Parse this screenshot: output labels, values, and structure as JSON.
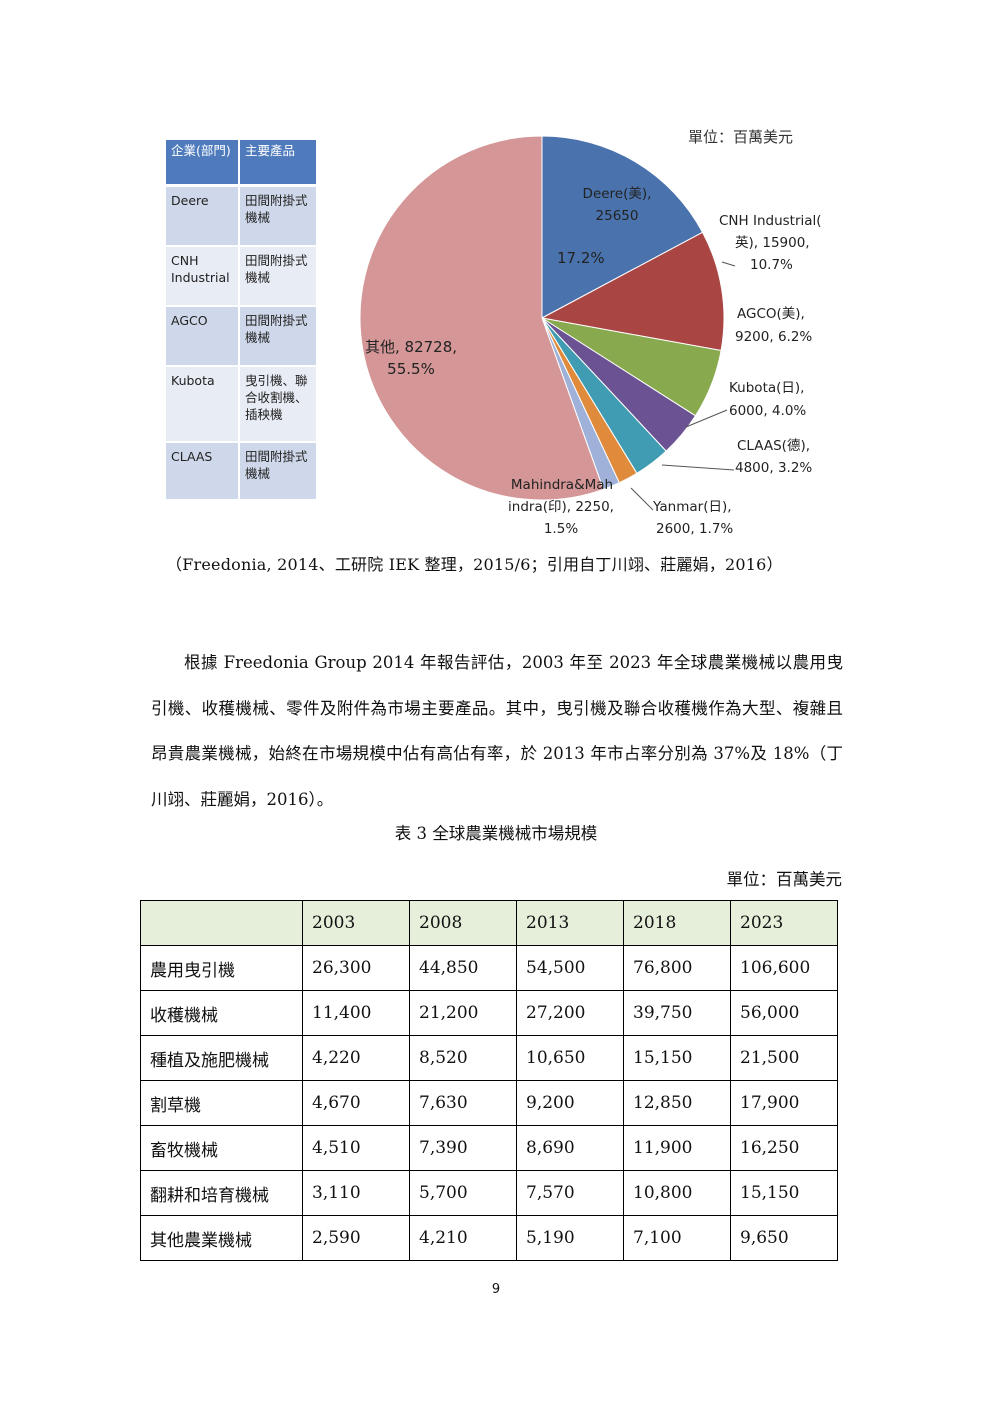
{
  "company_table": {
    "headers": [
      "企業(部門)",
      "主要產品"
    ],
    "rows": [
      {
        "company": "Deere",
        "product": "田間附掛式機械"
      },
      {
        "company": "CNH Industrial",
        "product": "田間附掛式機械"
      },
      {
        "company": "AGCO",
        "product": "田間附掛式機械"
      },
      {
        "company": "Kubota",
        "product": "曳引機、聯合收割機、插秧機"
      },
      {
        "company": "CLAAS",
        "product": "田間附掛式機械"
      }
    ]
  },
  "chart_unit": "單位：百萬美元",
  "chart_data": {
    "type": "pie",
    "unit": "百萬美元",
    "slices": [
      {
        "label": "Deere(美)",
        "value": 25650,
        "percent": 17.2,
        "color": "#4a73ad"
      },
      {
        "label": "CNH Industrial(英)",
        "value": 15900,
        "percent": 10.7,
        "color": "#a94543"
      },
      {
        "label": "AGCO(美)",
        "value": 9200,
        "percent": 6.2,
        "color": "#88a94d"
      },
      {
        "label": "Kubota(日)",
        "value": 6000,
        "percent": 4.0,
        "color": "#6b5293"
      },
      {
        "label": "CLAAS(德)",
        "value": 4800,
        "percent": 3.2,
        "color": "#3f9cb2"
      },
      {
        "label": "Yanmar(日)",
        "value": 2600,
        "percent": 1.7,
        "color": "#e08a3c"
      },
      {
        "label": "Mahindra&Mahindra(印)",
        "value": 2250,
        "percent": 1.5,
        "color": "#9fb1d8"
      },
      {
        "label": "其他",
        "value": 82728,
        "percent": 55.5,
        "color": "#d49696"
      }
    ]
  },
  "chart_labels": {
    "deere": [
      "Deere(美),",
      "25650"
    ],
    "deere_pct": "17.2%",
    "cnh": [
      "CNH Industrial(",
      "英), 15900,",
      "10.7%"
    ],
    "agco": [
      "AGCO(美),",
      "9200, 6.2%"
    ],
    "kubota": [
      "Kubota(日),",
      "6000, 4.0%"
    ],
    "claas": [
      "CLAAS(德),",
      "4800, 3.2%"
    ],
    "yanmar": [
      "Yanmar(日),",
      "2600, 1.7%"
    ],
    "mahindra": [
      "Mahindra&Mah",
      "indra(印), 2250,",
      "1.5%"
    ],
    "others": [
      "其他, 82728,",
      "55.5%"
    ]
  },
  "source_caption": "（Freedonia, 2014、工研院 IEK 整理，2015/6；引用自丁川翊、莊麗娟，2016）",
  "body_paragraph": "根據 Freedonia Group 2014 年報告評估，2003 年至 2023 年全球農業機械以農用曳引機、收穫機械、零件及附件為市場主要產品。其中，曳引機及聯合收穫機作為大型、複雜且昂貴農業機械，始終在市場規模中佔有高佔有率，於 2013 年市占率分別為 37%及 18%（丁川翊、莊麗娟，2016）。",
  "table_caption": "表 3 全球農業機械市場規模",
  "table_unit": "單位：百萬美元",
  "market_table": {
    "header": [
      "",
      "2003",
      "2008",
      "2013",
      "2018",
      "2023"
    ],
    "rows": [
      [
        "農用曳引機",
        "26,300",
        "44,850",
        "54,500",
        "76,800",
        "106,600"
      ],
      [
        "收穫機械",
        "11,400",
        "21,200",
        "27,200",
        "39,750",
        "56,000"
      ],
      [
        "種植及施肥機械",
        "4,220",
        "8,520",
        "10,650",
        "15,150",
        "21,500"
      ],
      [
        "割草機",
        "4,670",
        "7,630",
        "9,200",
        "12,850",
        "17,900"
      ],
      [
        "畜牧機械",
        "4,510",
        "7,390",
        "8,690",
        "11,900",
        "16,250"
      ],
      [
        "翻耕和培育機械",
        "3,110",
        "5,700",
        "7,570",
        "10,800",
        "15,150"
      ],
      [
        "其他農業機械",
        "2,590",
        "4,210",
        "5,190",
        "7,100",
        "9,650"
      ]
    ]
  },
  "page_number": "9"
}
